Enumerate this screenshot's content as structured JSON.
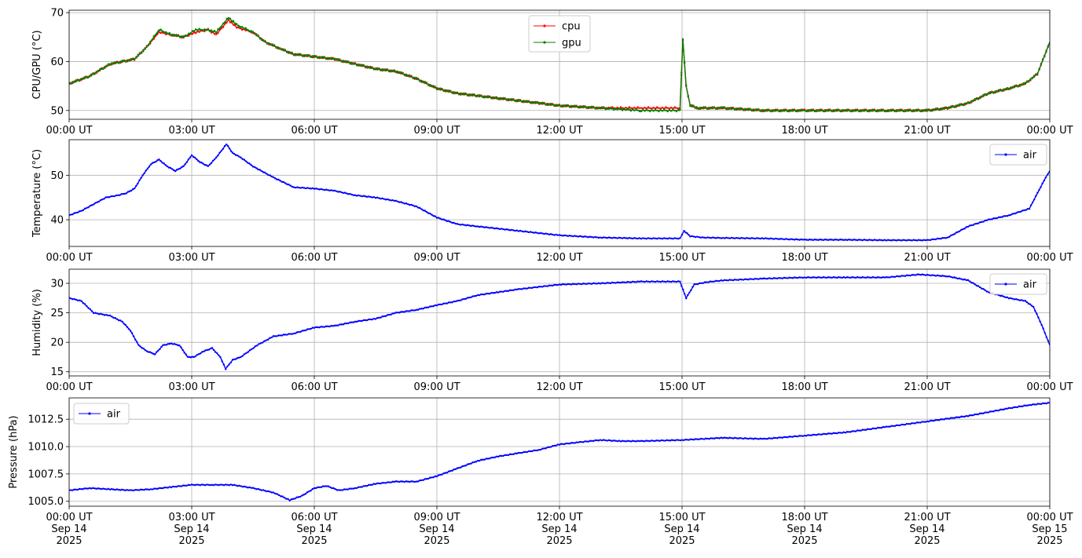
{
  "chart_data": [
    {
      "id": "cpu-gpu",
      "type": "line",
      "ylabel": "CPU/GPU (°C)",
      "xlim": [
        0,
        24
      ],
      "ylim": [
        48.2,
        70.5
      ],
      "yticks": [
        50,
        60,
        70
      ],
      "xtick_labels": [
        "00:00 UT",
        "03:00 UT",
        "06:00 UT",
        "09:00 UT",
        "12:00 UT",
        "15:00 UT",
        "18:00 UT",
        "21:00 UT",
        "00:00 UT"
      ],
      "legend": "top-center",
      "grid": true,
      "series": [
        {
          "name": "cpu",
          "color": "#ff0000",
          "x": [
            0,
            0.5,
            1,
            1.3,
            1.6,
            1.9,
            2.2,
            2.5,
            2.8,
            3.1,
            3.4,
            3.6,
            3.9,
            4.1,
            4.5,
            4.8,
            5.2,
            5.5,
            6,
            6.5,
            7,
            7.5,
            8,
            8.5,
            9,
            9.5,
            10,
            10.5,
            11,
            11.5,
            12,
            13,
            14,
            14.95,
            15.02,
            15.1,
            15.2,
            15.4,
            16,
            17,
            18,
            19,
            20,
            21,
            21.5,
            22,
            22.5,
            23,
            23.4,
            23.7,
            24
          ],
          "y": [
            55.5,
            57,
            59.5,
            60,
            60.5,
            63,
            66,
            65.5,
            65,
            66,
            66.5,
            65.5,
            68.5,
            67,
            66,
            64,
            62.5,
            61.5,
            61,
            60.5,
            59.5,
            58.5,
            58,
            56.5,
            54.5,
            53.5,
            53,
            52.5,
            52,
            51.5,
            51,
            50.5,
            50.5,
            50.5,
            64.5,
            55,
            51,
            50.5,
            50.5,
            50,
            50,
            50,
            50,
            50,
            50.5,
            51.5,
            53.5,
            54.5,
            55.5,
            57.5,
            64
          ]
        },
        {
          "name": "gpu",
          "color": "#008000",
          "x": [
            0,
            0.5,
            1,
            1.3,
            1.6,
            1.9,
            2.2,
            2.5,
            2.8,
            3.1,
            3.4,
            3.6,
            3.9,
            4.1,
            4.5,
            4.8,
            5.2,
            5.5,
            6,
            6.5,
            7,
            7.5,
            8,
            8.5,
            9,
            9.5,
            10,
            10.5,
            11,
            11.5,
            12,
            13,
            14,
            14.95,
            15.02,
            15.1,
            15.2,
            15.4,
            16,
            17,
            18,
            19,
            20,
            21,
            21.5,
            22,
            22.5,
            23,
            23.4,
            23.7,
            24
          ],
          "y": [
            55.5,
            57,
            59.5,
            60,
            60.5,
            63,
            66.5,
            65.5,
            65,
            66.5,
            66.5,
            66,
            69,
            67.5,
            66,
            64,
            62.5,
            61.5,
            61,
            60.5,
            59.5,
            58.5,
            58,
            56.5,
            54.5,
            53.5,
            53,
            52.5,
            52,
            51.5,
            51,
            50.5,
            50,
            50,
            64.5,
            55,
            51,
            50.5,
            50.5,
            50,
            50,
            50,
            50,
            50,
            50.5,
            51.5,
            53.5,
            54.5,
            55.5,
            57.5,
            64
          ]
        }
      ]
    },
    {
      "id": "temperature",
      "type": "line",
      "ylabel": "Temperature (°C)",
      "xlim": [
        0,
        24
      ],
      "ylim": [
        34,
        58
      ],
      "yticks": [
        40,
        50
      ],
      "xtick_labels": [
        "00:00 UT",
        "03:00 UT",
        "06:00 UT",
        "09:00 UT",
        "12:00 UT",
        "15:00 UT",
        "18:00 UT",
        "21:00 UT",
        "00:00 UT"
      ],
      "legend": "top-right",
      "grid": true,
      "series": [
        {
          "name": "air",
          "color": "#0000ff",
          "x": [
            0,
            0.3,
            0.6,
            0.9,
            1.2,
            1.4,
            1.6,
            1.8,
            2,
            2.2,
            2.4,
            2.6,
            2.8,
            3,
            3.2,
            3.4,
            3.6,
            3.85,
            4,
            4.2,
            4.5,
            5,
            5.5,
            6,
            6.5,
            7,
            7.5,
            8,
            8.5,
            9,
            9.5,
            10,
            11,
            12,
            13,
            14,
            14.95,
            15.05,
            15.2,
            15.5,
            16,
            17,
            18,
            19,
            20,
            21,
            21.5,
            22,
            22.5,
            23,
            23.5,
            23.7,
            23.9,
            24
          ],
          "y": [
            41,
            42,
            43.5,
            45,
            45.5,
            46,
            47,
            50,
            52.5,
            53.5,
            52,
            51,
            52,
            54.5,
            53,
            52,
            54,
            57,
            55,
            54,
            52,
            49.5,
            47.3,
            47,
            46.5,
            45.5,
            45,
            44.2,
            43,
            40.5,
            39,
            38.5,
            37.5,
            36.5,
            36,
            35.8,
            35.8,
            37.5,
            36.3,
            36,
            35.9,
            35.8,
            35.5,
            35.5,
            35.4,
            35.4,
            36,
            38.5,
            40,
            41,
            42.5,
            46,
            49.5,
            51
          ]
        }
      ]
    },
    {
      "id": "humidity",
      "type": "line",
      "ylabel": "Humidity (%)",
      "xlim": [
        0,
        24
      ],
      "ylim": [
        14.3,
        32.4
      ],
      "yticks": [
        15,
        20,
        25,
        30
      ],
      "xtick_labels": [
        "00:00 UT",
        "03:00 UT",
        "06:00 UT",
        "09:00 UT",
        "12:00 UT",
        "15:00 UT",
        "18:00 UT",
        "21:00 UT",
        "00:00 UT"
      ],
      "legend": "top-right",
      "grid": true,
      "series": [
        {
          "name": "air",
          "color": "#0000ff",
          "x": [
            0,
            0.3,
            0.6,
            1,
            1.3,
            1.5,
            1.7,
            1.9,
            2.1,
            2.3,
            2.5,
            2.7,
            2.9,
            3.05,
            3.3,
            3.5,
            3.7,
            3.83,
            4,
            4.2,
            4.6,
            5,
            5.5,
            6,
            6.5,
            7,
            7.5,
            8,
            8.5,
            9,
            9.5,
            10,
            10.5,
            11,
            12,
            13,
            14,
            14.95,
            15.1,
            15.3,
            15.6,
            16,
            17,
            18,
            19,
            20,
            20.8,
            21.5,
            22,
            22.5,
            23,
            23.4,
            23.6,
            23.8,
            24
          ],
          "y": [
            27.5,
            27,
            25,
            24.5,
            23.5,
            22,
            19.5,
            18.5,
            18,
            19.5,
            19.8,
            19.5,
            17.5,
            17.5,
            18.5,
            19,
            17.5,
            15.5,
            17,
            17.5,
            19.5,
            21,
            21.5,
            22.5,
            22.8,
            23.5,
            24,
            25,
            25.5,
            26.3,
            27,
            28,
            28.5,
            29,
            29.8,
            30,
            30.3,
            30.3,
            27.5,
            29.8,
            30.2,
            30.5,
            30.8,
            31,
            31,
            31,
            31.5,
            31.2,
            30.5,
            28.5,
            27.5,
            27,
            26,
            23,
            19.5
          ]
        }
      ]
    },
    {
      "id": "pressure",
      "type": "line",
      "ylabel": "Pressure (hPa)",
      "xlim": [
        0,
        24
      ],
      "ylim": [
        1004.55,
        1014.45
      ],
      "yticks": [
        1005.0,
        1007.5,
        1010.0,
        1012.5
      ],
      "ytick_labels": [
        "1005.0",
        "1007.5",
        "1010.0",
        "1012.5"
      ],
      "xtick_labels": [
        "00:00 UT\nSep 14\n2025",
        "03:00 UT\nSep 14\n2025",
        "06:00 UT\nSep 14\n2025",
        "09:00 UT\nSep 14\n2025",
        "12:00 UT\nSep 14\n2025",
        "15:00 UT\nSep 14\n2025",
        "18:00 UT\nSep 14\n2025",
        "21:00 UT\nSep 14\n2025",
        "00:00 UT\nSep 15\n2025"
      ],
      "legend": "top-left",
      "grid": true,
      "series": [
        {
          "name": "air",
          "color": "#0000ff",
          "x": [
            0,
            0.5,
            1,
            1.5,
            2,
            2.5,
            3,
            3.5,
            4,
            4.5,
            5,
            5.4,
            5.7,
            6,
            6.3,
            6.6,
            7,
            7.5,
            8,
            8.5,
            9,
            9.5,
            10,
            10.5,
            11,
            11.5,
            12,
            12.5,
            13,
            13.5,
            14,
            15,
            16,
            17,
            18,
            19,
            20,
            21,
            22,
            23,
            23.5,
            24
          ],
          "y": [
            1006,
            1006.2,
            1006.1,
            1006,
            1006.1,
            1006.3,
            1006.5,
            1006.5,
            1006.5,
            1006.2,
            1005.8,
            1005.1,
            1005.5,
            1006.2,
            1006.4,
            1006,
            1006.2,
            1006.6,
            1006.8,
            1006.8,
            1007.3,
            1008,
            1008.7,
            1009.1,
            1009.4,
            1009.7,
            1010.2,
            1010.4,
            1010.6,
            1010.5,
            1010.5,
            1010.6,
            1010.8,
            1010.7,
            1011,
            1011.3,
            1011.8,
            1012.3,
            1012.8,
            1013.5,
            1013.8,
            1014
          ]
        }
      ]
    }
  ]
}
